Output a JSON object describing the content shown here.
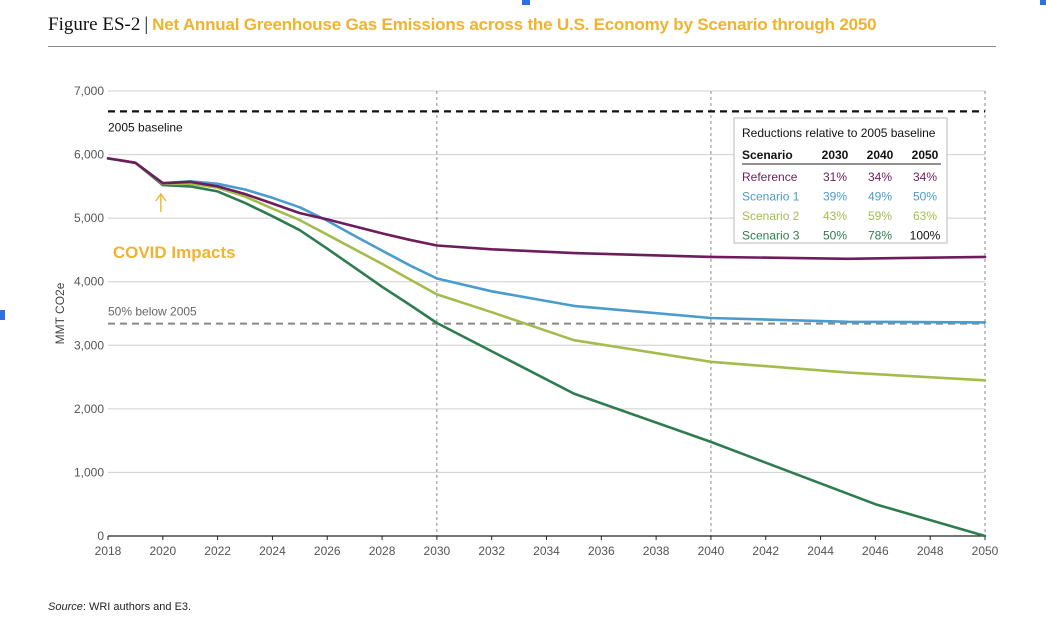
{
  "figure": {
    "label": "Figure ES-2",
    "separator": "|",
    "title": "Net Annual Greenhouse Gas Emissions across the U.S. Economy by Scenario through 2050"
  },
  "source": {
    "label": "Source",
    "text": ": WRI authors and E3."
  },
  "colors": {
    "Reference": "#6e1d5c",
    "Scenario 1": "#4a9ccc",
    "Scenario 2": "#a3bd4c",
    "Scenario 3": "#2e7c4f",
    "annotation": "#f0b331",
    "baseline": "#111111",
    "half": "#888888"
  },
  "chart_data": {
    "type": "line",
    "ylabel": "MMT CO2e",
    "xlabel": "",
    "xlim": [
      2018,
      2050
    ],
    "ylim": [
      0,
      7000
    ],
    "xticks": [
      2018,
      2020,
      2022,
      2024,
      2026,
      2028,
      2030,
      2032,
      2034,
      2036,
      2038,
      2040,
      2042,
      2044,
      2046,
      2048,
      2050
    ],
    "yticks": [
      0,
      1000,
      2000,
      3000,
      4000,
      5000,
      6000,
      7000
    ],
    "ytick_labels": [
      "0",
      "1,000",
      "2,000",
      "3,000",
      "4,000",
      "5,000",
      "6,000",
      "7,000"
    ],
    "grid": "horizontal",
    "vlines": [
      2030,
      2040,
      2050
    ],
    "reference_lines": [
      {
        "label": "2005 baseline",
        "y": 6680,
        "style": "dashed-black"
      },
      {
        "label": "50% below 2005",
        "y": 3340,
        "style": "dashed-gray"
      }
    ],
    "annotation": {
      "text": "COVID Impacts",
      "x": 2020,
      "y": 5400
    },
    "series": [
      {
        "name": "Reference",
        "x": [
          2018,
          2019,
          2020,
          2021,
          2022,
          2023,
          2024,
          2025,
          2026,
          2027,
          2028,
          2029,
          2030,
          2032,
          2035,
          2040,
          2045,
          2050
        ],
        "values": [
          5940,
          5870,
          5550,
          5570,
          5500,
          5380,
          5230,
          5080,
          4980,
          4870,
          4760,
          4660,
          4570,
          4510,
          4450,
          4390,
          4360,
          4390
        ]
      },
      {
        "name": "Scenario 1",
        "x": [
          2018,
          2019,
          2020,
          2021,
          2022,
          2023,
          2024,
          2025,
          2026,
          2027,
          2028,
          2029,
          2030,
          2032,
          2035,
          2040,
          2045,
          2050
        ],
        "values": [
          5940,
          5870,
          5550,
          5580,
          5540,
          5450,
          5320,
          5170,
          4960,
          4720,
          4490,
          4260,
          4050,
          3850,
          3620,
          3430,
          3370,
          3360
        ]
      },
      {
        "name": "Scenario 2",
        "x": [
          2018,
          2019,
          2020,
          2021,
          2022,
          2023,
          2024,
          2025,
          2026,
          2027,
          2028,
          2029,
          2030,
          2032,
          2035,
          2040,
          2045,
          2050
        ],
        "values": [
          5940,
          5870,
          5540,
          5540,
          5480,
          5340,
          5150,
          4970,
          4740,
          4510,
          4280,
          4040,
          3800,
          3520,
          3080,
          2740,
          2570,
          2450
        ]
      },
      {
        "name": "Scenario 3",
        "x": [
          2018,
          2019,
          2020,
          2021,
          2022,
          2023,
          2024,
          2025,
          2026,
          2027,
          2028,
          2029,
          2030,
          2035,
          2040,
          2046,
          2050
        ],
        "values": [
          5940,
          5870,
          5520,
          5500,
          5420,
          5240,
          5030,
          4810,
          4520,
          4220,
          3920,
          3640,
          3350,
          2240,
          1480,
          500,
          0
        ]
      }
    ],
    "table": {
      "title": "Reductions relative to 2005 baseline",
      "columns": [
        "Scenario",
        "2030",
        "2040",
        "2050"
      ],
      "rows": [
        {
          "name": "Reference",
          "values": [
            "31%",
            "34%",
            "34%"
          ]
        },
        {
          "name": "Scenario 1",
          "values": [
            "39%",
            "49%",
            "50%"
          ]
        },
        {
          "name": "Scenario 2",
          "values": [
            "43%",
            "59%",
            "63%"
          ]
        },
        {
          "name": "Scenario 3",
          "values": [
            "50%",
            "78%",
            "100%"
          ]
        }
      ]
    }
  }
}
